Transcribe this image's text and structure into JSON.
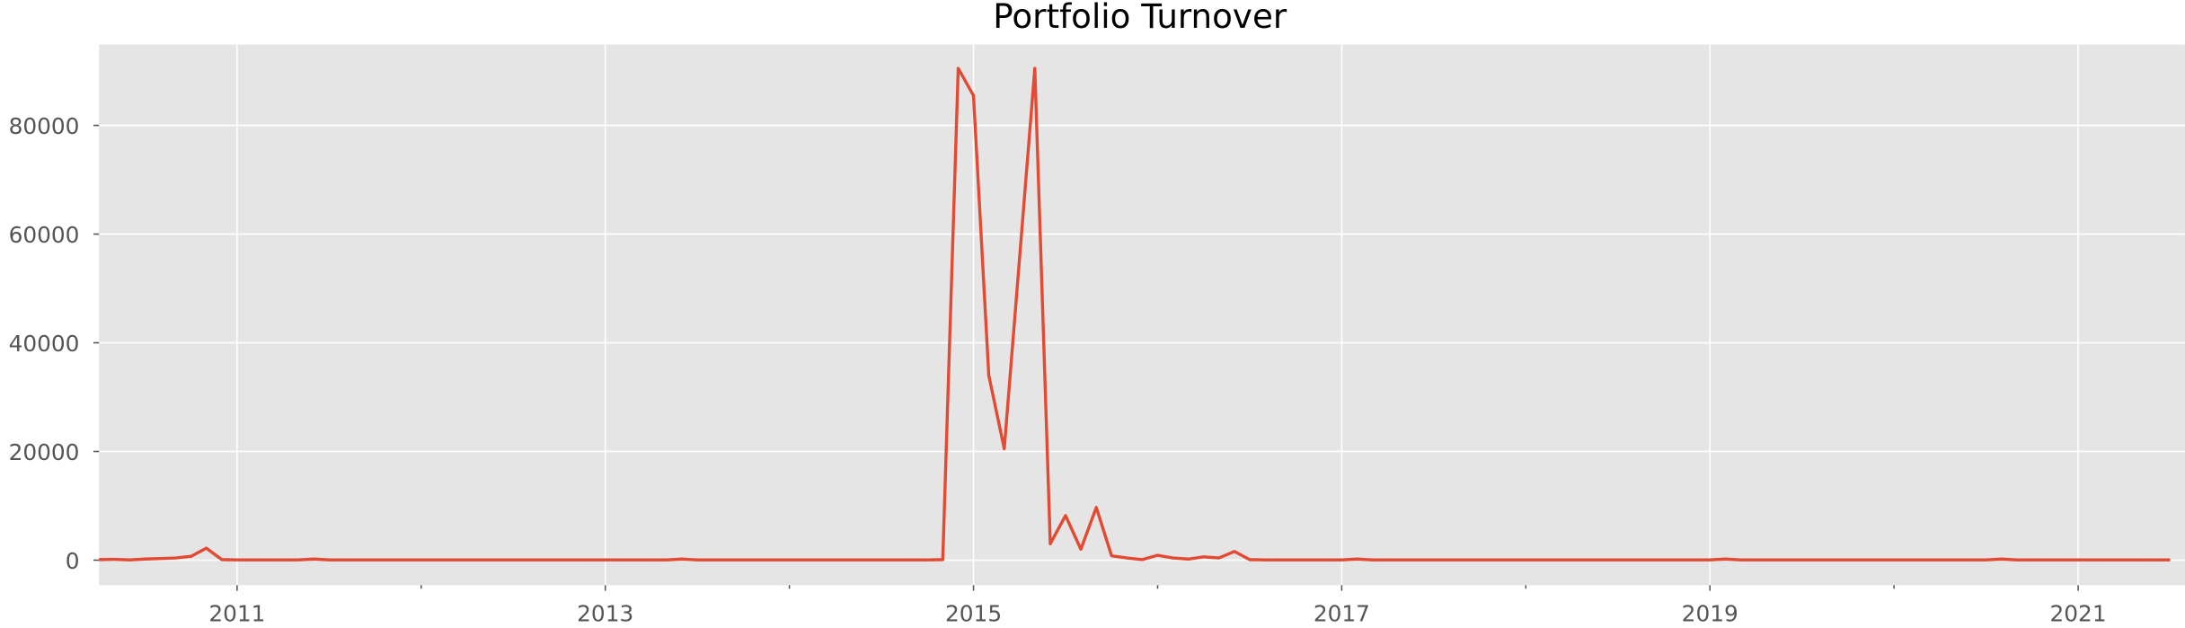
{
  "chart_data": {
    "type": "line",
    "title": "Portfolio Turnover",
    "x": [
      2010.25,
      2010.333,
      2010.417,
      2010.5,
      2010.583,
      2010.667,
      2010.75,
      2010.833,
      2010.917,
      2011,
      2011.083,
      2011.167,
      2011.25,
      2011.333,
      2011.417,
      2011.5,
      2011.583,
      2011.667,
      2011.75,
      2011.833,
      2011.917,
      2012,
      2012.083,
      2012.167,
      2012.25,
      2012.333,
      2012.417,
      2012.5,
      2012.583,
      2012.667,
      2012.75,
      2012.833,
      2012.917,
      2013,
      2013.083,
      2013.167,
      2013.25,
      2013.333,
      2013.417,
      2013.5,
      2013.583,
      2013.667,
      2013.75,
      2013.833,
      2013.917,
      2014,
      2014.083,
      2014.167,
      2014.25,
      2014.333,
      2014.417,
      2014.5,
      2014.583,
      2014.667,
      2014.75,
      2014.833,
      2014.917,
      2015,
      2015.083,
      2015.167,
      2015.25,
      2015.333,
      2015.417,
      2015.5,
      2015.583,
      2015.667,
      2015.75,
      2015.833,
      2015.917,
      2016,
      2016.083,
      2016.167,
      2016.25,
      2016.333,
      2016.417,
      2016.5,
      2016.583,
      2016.667,
      2016.75,
      2016.833,
      2016.917,
      2017,
      2017.083,
      2017.167,
      2017.25,
      2017.333,
      2017.417,
      2017.5,
      2017.583,
      2017.667,
      2017.75,
      2017.833,
      2017.917,
      2018,
      2018.083,
      2018.167,
      2018.25,
      2018.333,
      2018.417,
      2018.5,
      2018.583,
      2018.667,
      2018.75,
      2018.833,
      2018.917,
      2019,
      2019.083,
      2019.167,
      2019.25,
      2019.333,
      2019.417,
      2019.5,
      2019.583,
      2019.667,
      2019.75,
      2019.833,
      2019.917,
      2020,
      2020.083,
      2020.167,
      2020.25,
      2020.333,
      2020.417,
      2020.5,
      2020.583,
      2020.667,
      2020.75,
      2020.833,
      2020.917,
      2021,
      2021.083,
      2021.167,
      2021.25,
      2021.333,
      2021.417,
      2021.5
    ],
    "values": [
      100,
      150,
      50,
      200,
      300,
      400,
      700,
      2200,
      100,
      50,
      50,
      50,
      50,
      50,
      200,
      50,
      50,
      50,
      50,
      50,
      50,
      50,
      50,
      50,
      50,
      50,
      50,
      50,
      50,
      50,
      50,
      50,
      50,
      50,
      50,
      50,
      50,
      50,
      200,
      50,
      50,
      50,
      50,
      50,
      50,
      50,
      50,
      50,
      50,
      50,
      50,
      50,
      50,
      50,
      50,
      100,
      90500,
      85500,
      34000,
      20500,
      55500,
      90500,
      3000,
      8200,
      2000,
      9700,
      800,
      400,
      100,
      900,
      400,
      200,
      600,
      400,
      1600,
      100,
      50,
      50,
      50,
      50,
      50,
      50,
      200,
      50,
      50,
      50,
      50,
      50,
      50,
      50,
      50,
      50,
      50,
      50,
      50,
      50,
      50,
      50,
      50,
      50,
      50,
      50,
      50,
      50,
      50,
      50,
      200,
      50,
      50,
      50,
      50,
      50,
      50,
      50,
      50,
      50,
      50,
      50,
      50,
      50,
      50,
      50,
      50,
      50,
      200,
      50,
      50,
      50,
      50,
      50,
      50,
      50,
      50,
      50,
      50,
      50
    ],
    "color": "#e24a33",
    "xlim": [
      2010.25,
      2021.58
    ],
    "xticks": [
      2011,
      2013,
      2015,
      2017,
      2019,
      2021
    ],
    "xminorticks": [
      2012,
      2014,
      2016,
      2018,
      2020
    ],
    "ylim": [
      -4615,
      94872
    ],
    "yticks": [
      0,
      20000,
      40000,
      60000,
      80000
    ],
    "grid": true
  }
}
